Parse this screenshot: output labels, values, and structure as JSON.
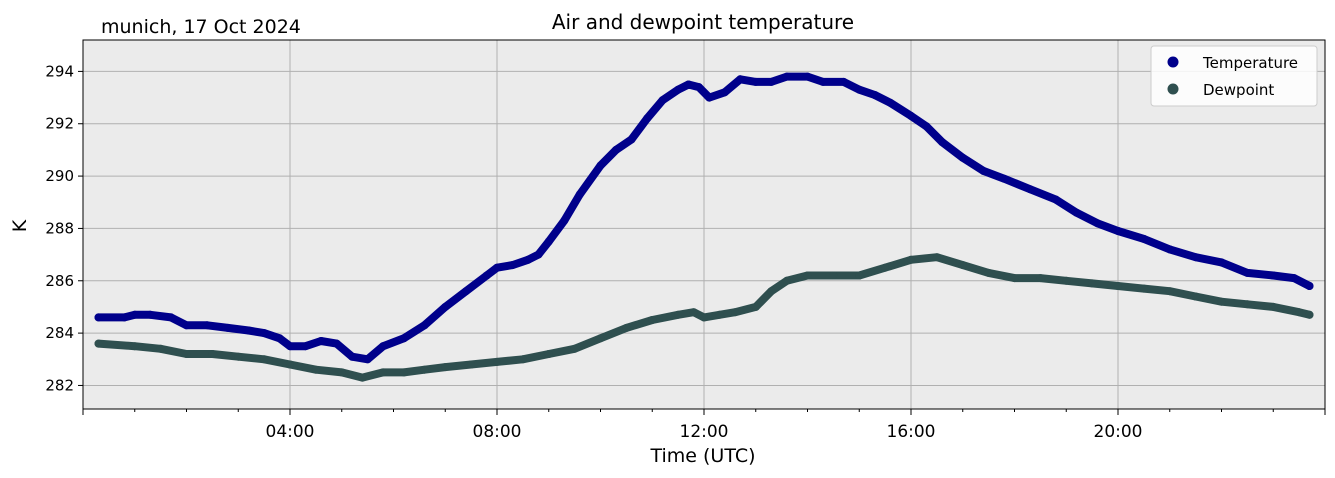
{
  "chart_data": {
    "type": "line",
    "title": "Air and dewpoint temperature",
    "subtitle": "munich, 17 Oct 2024",
    "xlabel": "Time (UTC)",
    "ylabel": "K",
    "xlim": [
      0,
      24
    ],
    "ylim": [
      281.1,
      295.2
    ],
    "x_ticks": [
      {
        "value": 4,
        "label": "04:00"
      },
      {
        "value": 8,
        "label": "08:00"
      },
      {
        "value": 12,
        "label": "12:00"
      },
      {
        "value": 16,
        "label": "16:00"
      },
      {
        "value": 20,
        "label": "20:00"
      }
    ],
    "y_ticks": [
      282,
      284,
      286,
      288,
      290,
      292,
      294
    ],
    "grid": true,
    "background": "#ebebeb",
    "legend": {
      "placement": "top-right",
      "entries": [
        "Temperature",
        "Dewpoint"
      ]
    },
    "series": [
      {
        "name": "Temperature",
        "color": "#00008b",
        "raw_color": "#7aa6b3",
        "x": [
          0.3,
          0.8,
          1.0,
          1.3,
          1.7,
          2.0,
          2.4,
          2.8,
          3.2,
          3.5,
          3.8,
          4.0,
          4.3,
          4.6,
          4.9,
          5.2,
          5.5,
          5.8,
          6.2,
          6.6,
          7.0,
          7.4,
          7.8,
          8.0,
          8.3,
          8.6,
          8.8,
          9.0,
          9.3,
          9.6,
          10.0,
          10.3,
          10.6,
          10.9,
          11.2,
          11.5,
          11.7,
          11.9,
          12.1,
          12.4,
          12.7,
          13.0,
          13.3,
          13.6,
          14.0,
          14.3,
          14.7,
          15.0,
          15.3,
          15.6,
          16.0,
          16.3,
          16.6,
          17.0,
          17.4,
          17.8,
          18.3,
          18.8,
          19.2,
          19.6,
          20.0,
          20.5,
          21.0,
          21.5,
          22.0,
          22.5,
          23.0,
          23.4,
          23.7
        ],
        "values": [
          284.6,
          284.6,
          284.7,
          284.7,
          284.6,
          284.3,
          284.3,
          284.2,
          284.1,
          284.0,
          283.8,
          283.5,
          283.5,
          283.7,
          283.6,
          283.1,
          283.0,
          283.5,
          283.8,
          284.3,
          285.0,
          285.6,
          286.2,
          286.5,
          286.6,
          286.8,
          287.0,
          287.5,
          288.3,
          289.3,
          290.4,
          291.0,
          291.4,
          292.2,
          292.9,
          293.3,
          293.5,
          293.4,
          293.0,
          293.2,
          293.7,
          293.6,
          293.6,
          293.8,
          293.8,
          293.6,
          293.6,
          293.3,
          293.1,
          292.8,
          292.3,
          291.9,
          291.3,
          290.7,
          290.2,
          289.9,
          289.5,
          289.1,
          288.6,
          288.2,
          287.9,
          287.6,
          287.2,
          286.9,
          286.7,
          286.3,
          286.2,
          286.1,
          285.8
        ]
      },
      {
        "name": "Dewpoint",
        "color": "#2f4f4f",
        "raw_color": "#2b9de8",
        "x": [
          0.3,
          1.0,
          1.5,
          2.0,
          2.5,
          3.0,
          3.5,
          4.0,
          4.5,
          5.0,
          5.4,
          5.8,
          6.2,
          6.6,
          7.0,
          7.5,
          8.0,
          8.5,
          9.0,
          9.5,
          10.0,
          10.5,
          11.0,
          11.5,
          11.8,
          12.0,
          12.3,
          12.6,
          13.0,
          13.3,
          13.6,
          14.0,
          14.5,
          15.0,
          15.5,
          16.0,
          16.5,
          17.0,
          17.5,
          18.0,
          18.5,
          19.0,
          19.5,
          20.0,
          20.5,
          21.0,
          21.5,
          22.0,
          22.5,
          23.0,
          23.5,
          23.7
        ],
        "values": [
          283.6,
          283.5,
          283.4,
          283.2,
          283.2,
          283.1,
          283.0,
          282.8,
          282.6,
          282.5,
          282.3,
          282.5,
          282.5,
          282.6,
          282.7,
          282.8,
          282.9,
          283.0,
          283.2,
          283.4,
          283.8,
          284.2,
          284.5,
          284.7,
          284.8,
          284.6,
          284.7,
          284.8,
          285.0,
          285.6,
          286.0,
          286.2,
          286.2,
          286.2,
          286.5,
          286.8,
          286.9,
          286.6,
          286.3,
          286.1,
          286.1,
          286.0,
          285.9,
          285.8,
          285.7,
          285.6,
          285.4,
          285.2,
          285.1,
          285.0,
          284.8,
          284.7
        ]
      }
    ]
  }
}
